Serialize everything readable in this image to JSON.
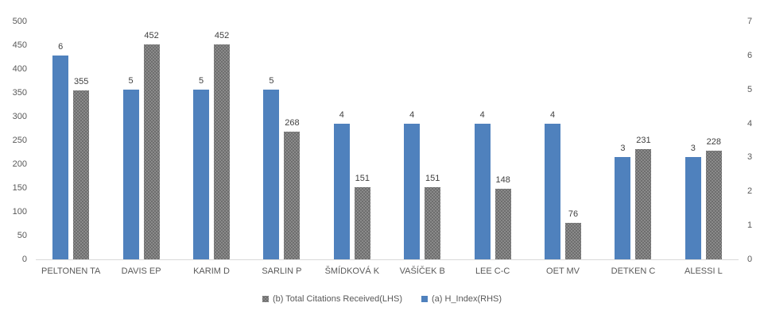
{
  "chart_data": {
    "type": "bar",
    "title": "",
    "categories": [
      "PELTONEN TA",
      "DAVIS EP",
      "KARIM D",
      "SARLIN P",
      "ŠMÍDKOVÁ K",
      "VAŠÍČEK B",
      "LEE C-C",
      "OET MV",
      "DETKEN C",
      "ALESSI L"
    ],
    "series": [
      {
        "name": "(a) H_Index(RHS)",
        "axis": "right",
        "color": "#4f81bd",
        "pattern": "solid",
        "values": [
          6,
          5,
          5,
          5,
          4,
          4,
          4,
          4,
          3,
          3
        ]
      },
      {
        "name": "(b) Total Citations Received(LHS)",
        "axis": "left",
        "color": "#8a8a8a",
        "pattern": "stipple",
        "values": [
          355,
          452,
          452,
          268,
          151,
          151,
          148,
          76,
          231,
          228
        ]
      }
    ],
    "left_axis": {
      "min": 0,
      "max": 500,
      "step": 50,
      "ticks": [
        0,
        50,
        100,
        150,
        200,
        250,
        300,
        350,
        400,
        450,
        500
      ]
    },
    "right_axis": {
      "min": 0,
      "max": 7,
      "step": 1,
      "ticks": [
        0,
        1,
        2,
        3,
        4,
        5,
        6,
        7
      ]
    },
    "grid": false,
    "data_labels": true,
    "legend_position": "bottom",
    "xlabel": "",
    "ylabel": ""
  },
  "legend": {
    "items": [
      {
        "label": "(b) Total Citations Received(LHS)",
        "color": "#8a8a8a",
        "swatch": "citations-swatch"
      },
      {
        "label": "(a) H_Index(RHS)",
        "color": "#4f81bd",
        "swatch": "h-index-swatch"
      }
    ]
  },
  "colors": {
    "h_index_bar": "#4f81bd",
    "citations_bar": "#8a8a8a",
    "axis_text": "#595959",
    "data_label_text": "#404040",
    "axis_line": "#d9d9d9",
    "background": "#ffffff"
  }
}
